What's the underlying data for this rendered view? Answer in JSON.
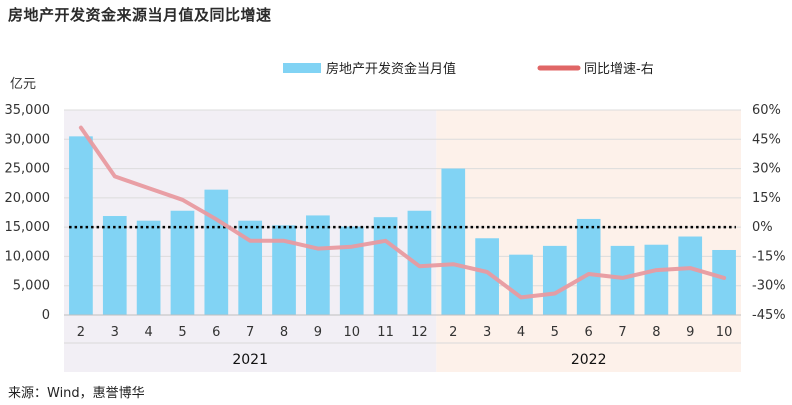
{
  "title": "房地产开发资金来源当月值及同比增速",
  "source": "来源：Wind，惠誉博华",
  "colors": {
    "bar": "#81d3f4",
    "line": "#e89aa0",
    "bg_2021": "#f2eff5",
    "bg_2022": "#fdf1ea",
    "zero_line": "#000000"
  },
  "chart_data": {
    "type": "bar+line",
    "title": "",
    "y_left_label": "亿元",
    "y_left_ticks": [
      "0",
      "5,000",
      "10,000",
      "15,000",
      "20,000",
      "25,000",
      "30,000",
      "35,000"
    ],
    "y_left_range": [
      0,
      35000
    ],
    "y_right_ticks": [
      "-45%",
      "-30%",
      "-15%",
      "0%",
      "15%",
      "30%",
      "45%",
      "60%"
    ],
    "y_right_range": [
      -45,
      60
    ],
    "categories": [
      "2",
      "3",
      "4",
      "5",
      "6",
      "7",
      "8",
      "9",
      "10",
      "11",
      "12",
      "2",
      "3",
      "4",
      "5",
      "6",
      "7",
      "8",
      "9",
      "10"
    ],
    "groups": [
      {
        "label": "2021",
        "count": 11
      },
      {
        "label": "2022",
        "count": 9
      }
    ],
    "series": [
      {
        "name": "房地产开发资金当月值",
        "type": "bar",
        "axis": "left",
        "values": [
          30500,
          16900,
          16100,
          17800,
          21400,
          16100,
          15300,
          17000,
          15100,
          16700,
          17800,
          25000,
          13100,
          10300,
          11800,
          16400,
          11800,
          12000,
          13400,
          11100
        ]
      },
      {
        "name": "同比增速-右",
        "type": "line",
        "axis": "right",
        "values": [
          51,
          26,
          20,
          14,
          4,
          -7,
          -7,
          -11,
          -10,
          -7,
          -20,
          -19,
          -23,
          -36,
          -34,
          -24,
          -26,
          -22,
          -21,
          -26
        ]
      }
    ],
    "reference_line": {
      "axis": "right",
      "value": 0,
      "style": "dotted"
    },
    "legend_position": "top"
  }
}
